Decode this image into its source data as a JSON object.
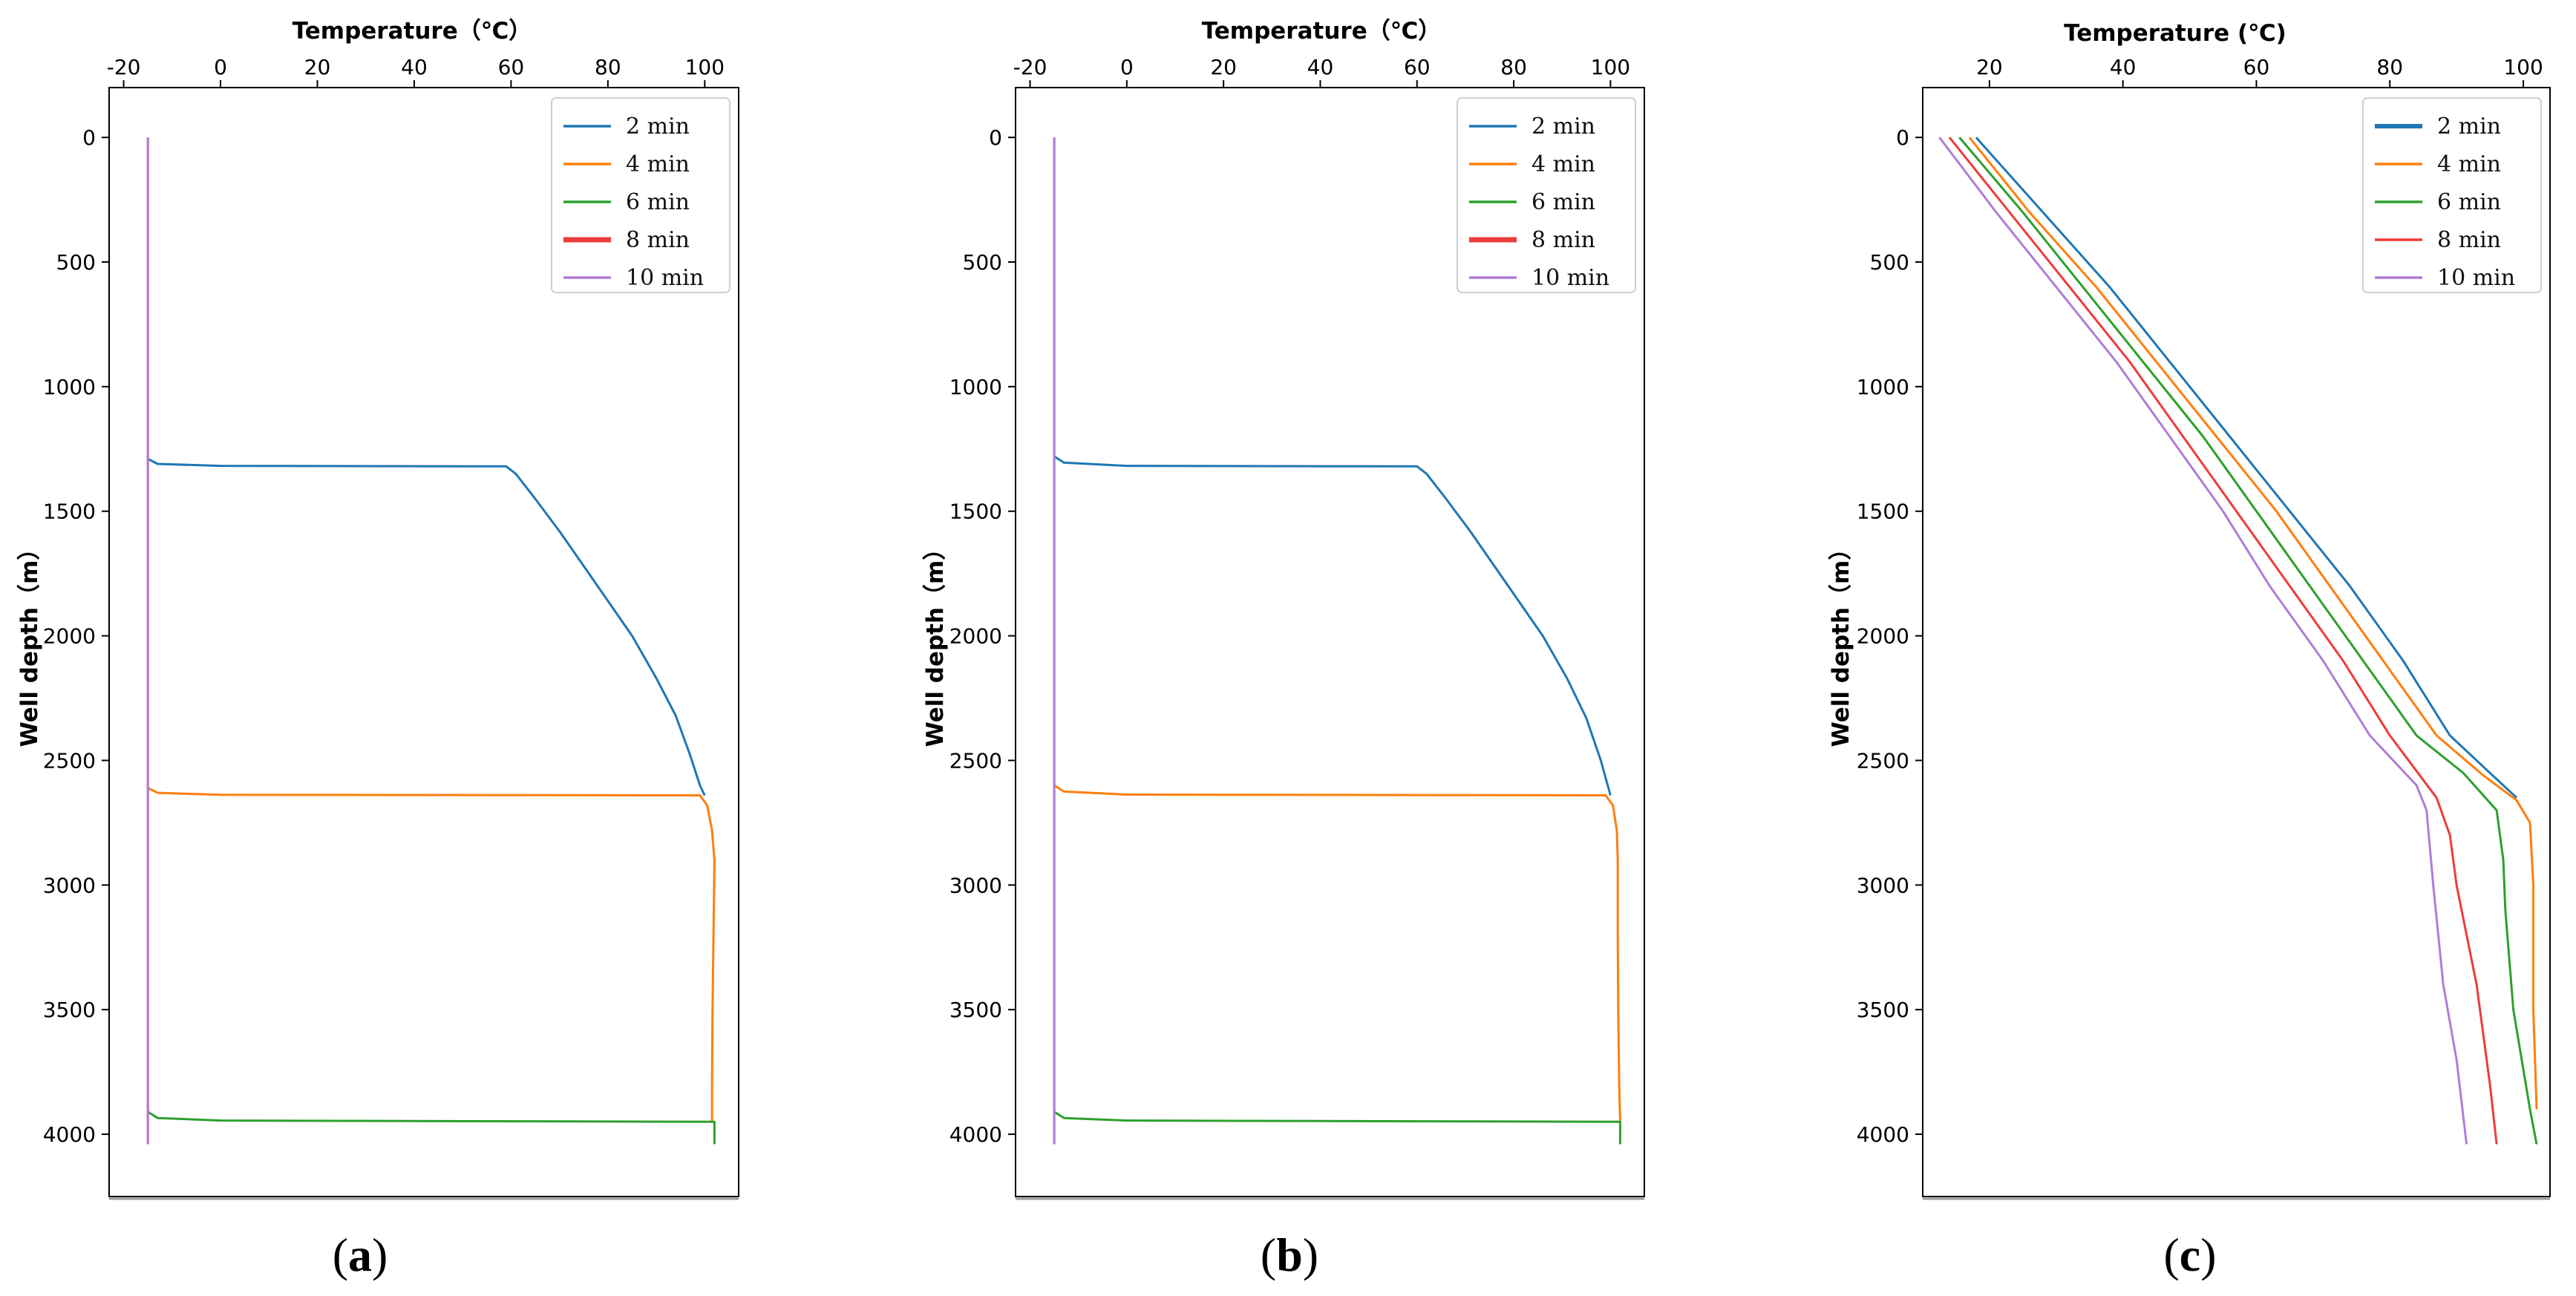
{
  "figure": {
    "panel_labels": [
      "(a)",
      "(b)",
      "(c)"
    ]
  },
  "colors": {
    "s2": "#1f77b4",
    "s4": "#ff7f0e",
    "s6": "#2ca02c",
    "s8": "#ee3b3b",
    "s10": "#b07cd8"
  },
  "chart_data": [
    {
      "type": "line",
      "panel": "(a)",
      "xlabel": "Temperature（℃）",
      "ylabel": "Well depth（m）",
      "xlim": [
        -23,
        107
      ],
      "ylim": [
        4250,
        -200
      ],
      "xticks": [
        -20,
        0,
        20,
        40,
        60,
        80,
        100
      ],
      "yticks": [
        0,
        500,
        1000,
        1500,
        2000,
        2500,
        3000,
        3500,
        4000
      ],
      "legend": [
        "2 min",
        "4 min",
        "6 min",
        "8 min",
        "10 min"
      ],
      "legend_position": "top-right",
      "series": [
        {
          "name": "2 min",
          "color_key": "s2",
          "points": [
            [
              -15,
              1290
            ],
            [
              -13,
              1310
            ],
            [
              0,
              1318
            ],
            [
              59,
              1320
            ],
            [
              61,
              1350
            ],
            [
              65,
              1450
            ],
            [
              70,
              1580
            ],
            [
              75,
              1720
            ],
            [
              80,
              1860
            ],
            [
              85,
              2000
            ],
            [
              90,
              2170
            ],
            [
              94,
              2320
            ],
            [
              97,
              2480
            ],
            [
              99,
              2600
            ],
            [
              100,
              2640
            ]
          ]
        },
        {
          "name": "4 min",
          "color_key": "s4",
          "points": [
            [
              -15,
              2610
            ],
            [
              -13,
              2630
            ],
            [
              0,
              2638
            ],
            [
              99,
              2640
            ],
            [
              100.5,
              2680
            ],
            [
              101.5,
              2780
            ],
            [
              102,
              2900
            ],
            [
              101.8,
              3200
            ],
            [
              101.6,
              3500
            ],
            [
              101.5,
              3800
            ],
            [
              101.5,
              3950
            ]
          ]
        },
        {
          "name": "6 min",
          "color_key": "s6",
          "points": [
            [
              -15,
              3910
            ],
            [
              -13,
              3935
            ],
            [
              0,
              3945
            ],
            [
              102,
              3950
            ],
            [
              102,
              4040
            ]
          ]
        },
        {
          "name": "8 min",
          "color_key": "s8",
          "points": [
            [
              -15,
              0
            ],
            [
              -15,
              4040
            ]
          ]
        },
        {
          "name": "10 min",
          "color_key": "s10",
          "points": [
            [
              -15,
              0
            ],
            [
              -15,
              4040
            ]
          ]
        }
      ]
    },
    {
      "type": "line",
      "panel": "(b)",
      "xlabel": "Temperature（℃）",
      "ylabel": "Well depth（m）",
      "xlim": [
        -23,
        107
      ],
      "ylim": [
        4250,
        -200
      ],
      "xticks": [
        -20,
        0,
        20,
        40,
        60,
        80,
        100
      ],
      "yticks": [
        0,
        500,
        1000,
        1500,
        2000,
        2500,
        3000,
        3500,
        4000
      ],
      "legend": [
        "2 min",
        "4 min",
        "6 min",
        "8 min",
        "10 min"
      ],
      "legend_position": "top-right",
      "series": [
        {
          "name": "2 min",
          "color_key": "s2",
          "points": [
            [
              -15,
              1280
            ],
            [
              -13,
              1305
            ],
            [
              0,
              1318
            ],
            [
              60,
              1320
            ],
            [
              62,
              1350
            ],
            [
              66,
              1450
            ],
            [
              71,
              1580
            ],
            [
              76,
              1720
            ],
            [
              81,
              1860
            ],
            [
              86,
              2000
            ],
            [
              91,
              2170
            ],
            [
              95,
              2330
            ],
            [
              98,
              2500
            ],
            [
              100,
              2640
            ]
          ]
        },
        {
          "name": "4 min",
          "color_key": "s4",
          "points": [
            [
              -15,
              2600
            ],
            [
              -13,
              2625
            ],
            [
              0,
              2637
            ],
            [
              99,
              2640
            ],
            [
              100.5,
              2680
            ],
            [
              101.3,
              2780
            ],
            [
              101.5,
              2900
            ],
            [
              101.5,
              3200
            ],
            [
              101.6,
              3500
            ],
            [
              101.8,
              3800
            ],
            [
              102,
              3950
            ]
          ]
        },
        {
          "name": "6 min",
          "color_key": "s6",
          "points": [
            [
              -15,
              3910
            ],
            [
              -13,
              3935
            ],
            [
              0,
              3945
            ],
            [
              102,
              3950
            ],
            [
              102,
              4040
            ]
          ]
        },
        {
          "name": "8 min",
          "color_key": "s8",
          "points": [
            [
              -15,
              0
            ],
            [
              -15,
              4040
            ]
          ]
        },
        {
          "name": "10 min",
          "color_key": "s10",
          "points": [
            [
              -15,
              0
            ],
            [
              -15,
              4040
            ]
          ]
        }
      ]
    },
    {
      "type": "line",
      "panel": "(c)",
      "xlabel": "Temperature (℃)",
      "ylabel": "Well depth（m）",
      "xlim": [
        10,
        104
      ],
      "ylim": [
        4250,
        -200
      ],
      "xticks": [
        20,
        40,
        60,
        80,
        100
      ],
      "yticks": [
        0,
        500,
        1000,
        1500,
        2000,
        2500,
        3000,
        3500,
        4000
      ],
      "legend": [
        "2 min",
        "4 min",
        "6 min",
        "8 min",
        "10 min"
      ],
      "legend_position": "top-right",
      "series": [
        {
          "name": "2 min",
          "color_key": "s2",
          "points": [
            [
              18,
              0
            ],
            [
              28,
              300
            ],
            [
              38,
              600
            ],
            [
              47,
              900
            ],
            [
              56,
              1200
            ],
            [
              65,
              1500
            ],
            [
              74,
              1800
            ],
            [
              82,
              2100
            ],
            [
              89,
              2400
            ],
            [
              95,
              2550
            ],
            [
              99,
              2650
            ]
          ]
        },
        {
          "name": "4 min",
          "color_key": "s4",
          "points": [
            [
              17,
              0
            ],
            [
              26,
              300
            ],
            [
              36,
              600
            ],
            [
              45,
              900
            ],
            [
              54,
              1200
            ],
            [
              63,
              1500
            ],
            [
              71,
              1800
            ],
            [
              79,
              2100
            ],
            [
              87,
              2400
            ],
            [
              94,
              2560
            ],
            [
              99,
              2660
            ],
            [
              101,
              2750
            ],
            [
              101.5,
              3000
            ],
            [
              101.5,
              3500
            ],
            [
              102,
              3900
            ]
          ]
        },
        {
          "name": "6 min",
          "color_key": "s6",
          "points": [
            [
              15.5,
              0
            ],
            [
              25,
              300
            ],
            [
              34,
              600
            ],
            [
              43,
              900
            ],
            [
              52,
              1200
            ],
            [
              60,
              1500
            ],
            [
              68,
              1800
            ],
            [
              76,
              2100
            ],
            [
              84,
              2400
            ],
            [
              91,
              2550
            ],
            [
              96,
              2700
            ],
            [
              97,
              2900
            ],
            [
              97.3,
              3100
            ],
            [
              98.5,
              3500
            ],
            [
              101,
              3900
            ],
            [
              102,
              4040
            ]
          ]
        },
        {
          "name": "8 min",
          "color_key": "s8",
          "points": [
            [
              14,
              0
            ],
            [
              23,
              300
            ],
            [
              32,
              600
            ],
            [
              41,
              900
            ],
            [
              49,
              1200
            ],
            [
              57,
              1500
            ],
            [
              65,
              1800
            ],
            [
              73,
              2100
            ],
            [
              80,
              2400
            ],
            [
              87,
              2650
            ],
            [
              89,
              2800
            ],
            [
              90,
              3000
            ],
            [
              93,
              3400
            ],
            [
              95,
              3800
            ],
            [
              96,
              4040
            ]
          ]
        },
        {
          "name": "10 min",
          "color_key": "s10",
          "points": [
            [
              12.5,
              0
            ],
            [
              21,
              300
            ],
            [
              30,
              600
            ],
            [
              39,
              900
            ],
            [
              47,
              1200
            ],
            [
              55,
              1500
            ],
            [
              62,
              1800
            ],
            [
              70,
              2100
            ],
            [
              77,
              2400
            ],
            [
              84,
              2600
            ],
            [
              85.5,
              2700
            ],
            [
              86.5,
              3000
            ],
            [
              88,
              3400
            ],
            [
              90,
              3700
            ],
            [
              91.5,
              4040
            ]
          ]
        }
      ]
    }
  ]
}
